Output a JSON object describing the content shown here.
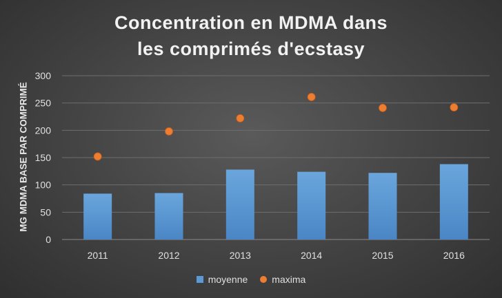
{
  "chart_data": {
    "type": "bar",
    "title": [
      "Concentration en MDMA dans",
      "les comprimés d'ecstasy"
    ],
    "xlabel": "",
    "ylabel": "MG MDMA BASE PAR COMPRIMÉ",
    "categories": [
      "2011",
      "2012",
      "2013",
      "2014",
      "2015",
      "2016"
    ],
    "ylim": [
      0,
      300
    ],
    "yticks": [
      0,
      50,
      100,
      150,
      200,
      250,
      300
    ],
    "grid": true,
    "legend_position": "bottom",
    "series": [
      {
        "name": "moyenne",
        "type": "bar",
        "color": "#5b9bd5",
        "values": [
          84,
          85,
          128,
          124,
          122,
          138
        ]
      },
      {
        "name": "maxima",
        "type": "scatter",
        "color": "#ed7d31",
        "values": [
          152,
          198,
          222,
          261,
          241,
          242
        ]
      }
    ]
  }
}
